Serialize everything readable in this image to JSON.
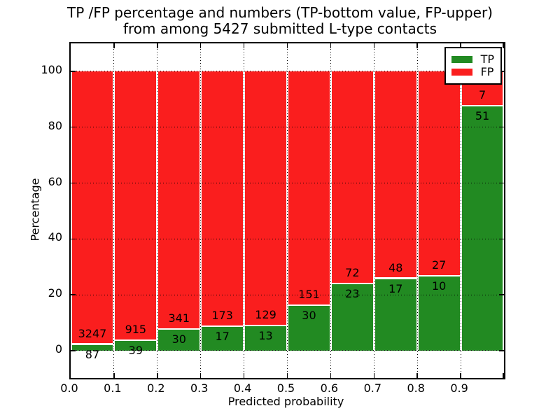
{
  "chart_data": {
    "type": "bar",
    "stacked": true,
    "normalized_to_percent": true,
    "title_line1": "TP /FP percentage and numbers (TP-bottom value, FP-upper)",
    "title_line2": "from among 5427 submitted L-type contacts",
    "xlabel": "Predicted probability",
    "ylabel": "Percentage",
    "categories": [
      "0.0",
      "0.1",
      "0.2",
      "0.3",
      "0.4",
      "0.5",
      "0.6",
      "0.7",
      "0.8",
      "0.9"
    ],
    "series": [
      {
        "name": "TP",
        "color": "#228a22",
        "values": [
          87,
          39,
          30,
          17,
          13,
          30,
          23,
          17,
          10,
          51
        ]
      },
      {
        "name": "FP",
        "color": "#fa1e1e",
        "values": [
          3247,
          915,
          341,
          173,
          129,
          151,
          72,
          48,
          27,
          7
        ]
      }
    ],
    "yticks": [
      0,
      20,
      40,
      60,
      80,
      100
    ],
    "ylim": [
      -9.8,
      110
    ],
    "xlim": [
      0.0,
      1.0
    ],
    "grid": "dotted",
    "legend": {
      "position": "upper-right",
      "entries": [
        "TP",
        "FP"
      ]
    }
  }
}
